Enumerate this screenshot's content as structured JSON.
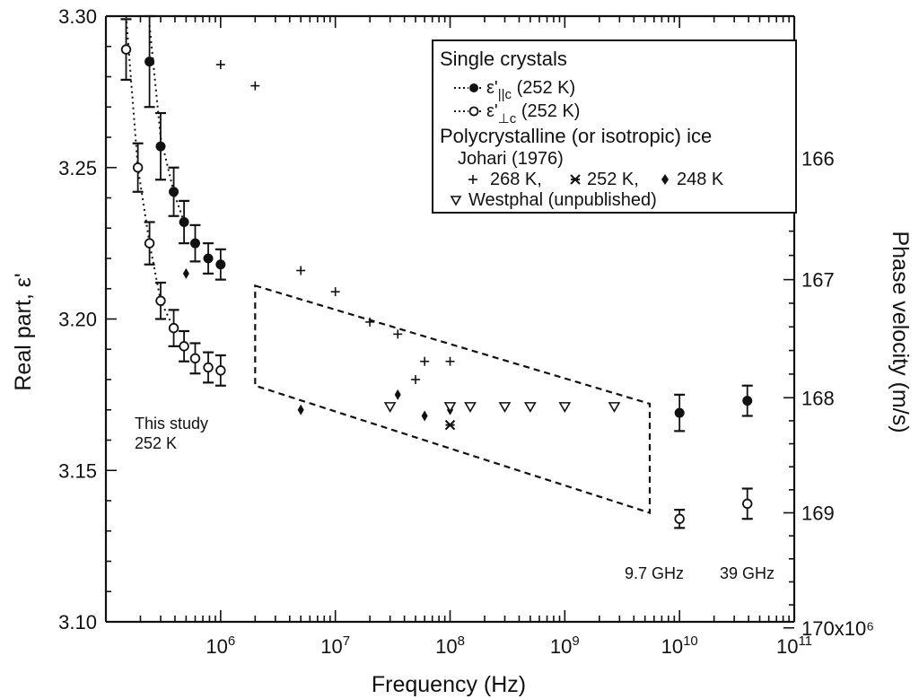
{
  "chart_data": {
    "type": "scatter",
    "xlabel": "Frequency (Hz)",
    "ylabel": "Real part, ε'",
    "y2label": "Phase velocity (m/s)",
    "xscale": "log",
    "xlim": [
      100000,
      100000000000
    ],
    "ylim": [
      3.1,
      3.3
    ],
    "x_ticks": [
      {
        "value": 1000000,
        "base": "10",
        "exp": "6"
      },
      {
        "value": 10000000,
        "base": "10",
        "exp": "7"
      },
      {
        "value": 100000000,
        "base": "10",
        "exp": "8"
      },
      {
        "value": 1000000000,
        "base": "10",
        "exp": "9"
      },
      {
        "value": 10000000000,
        "base": "10",
        "exp": "10"
      },
      {
        "value": 100000000000,
        "base": "10",
        "exp": "11"
      }
    ],
    "y_ticks": [
      {
        "value": 3.1,
        "label": "3.10"
      },
      {
        "value": 3.15,
        "label": "3.15"
      },
      {
        "value": 3.2,
        "label": "3.20"
      },
      {
        "value": 3.25,
        "label": "3.25"
      },
      {
        "value": 3.3,
        "label": "3.30"
      }
    ],
    "y2_ticks": [
      {
        "value": 3.253,
        "label": "166"
      },
      {
        "value": 3.213,
        "label": "167"
      },
      {
        "value": 3.174,
        "label": "168"
      },
      {
        "value": 3.136,
        "label": "169"
      },
      {
        "value": 3.098,
        "label": "170x10⁶"
      }
    ],
    "series": [
      {
        "name": "ε'||c (252 K)",
        "marker": "filled-circle",
        "points": [
          [
            240000,
            3.285,
            0.015
          ],
          [
            300000,
            3.257,
            0.011
          ],
          [
            390000,
            3.242,
            0.008
          ],
          [
            480000,
            3.232,
            0.007
          ],
          [
            600000,
            3.225,
            0.006
          ],
          [
            780000,
            3.22,
            0.005
          ],
          [
            1000000,
            3.218,
            0.005
          ],
          [
            10000000000,
            3.169,
            0.006
          ],
          [
            39000000000,
            3.173,
            0.005
          ]
        ]
      },
      {
        "name": "ε'⊥c (252 K)",
        "marker": "open-circle",
        "points": [
          [
            150000,
            3.289,
            0.01
          ],
          [
            190000,
            3.25,
            0.008
          ],
          [
            240000,
            3.225,
            0.007
          ],
          [
            300000,
            3.206,
            0.006
          ],
          [
            390000,
            3.197,
            0.006
          ],
          [
            480000,
            3.191,
            0.005
          ],
          [
            600000,
            3.187,
            0.005
          ],
          [
            780000,
            3.184,
            0.005
          ],
          [
            1000000,
            3.183,
            0.005
          ],
          [
            10000000000,
            3.134,
            0.003
          ],
          [
            39000000000,
            3.139,
            0.005
          ]
        ]
      },
      {
        "name": "268 K",
        "marker": "plus",
        "points": [
          [
            1000000,
            3.284
          ],
          [
            2000000,
            3.277
          ],
          [
            5000000,
            3.216
          ],
          [
            10000000,
            3.209
          ],
          [
            20000000,
            3.199
          ],
          [
            35000000,
            3.195
          ],
          [
            50000000,
            3.18
          ],
          [
            60000000,
            3.186
          ],
          [
            100000000,
            3.186
          ]
        ]
      },
      {
        "name": "252 K",
        "marker": "asterisk",
        "points": [
          [
            100000000,
            3.165
          ]
        ]
      },
      {
        "name": "248 K",
        "marker": "diamond",
        "points": [
          [
            500000,
            3.215
          ],
          [
            5000000,
            3.17
          ],
          [
            35000000,
            3.175
          ],
          [
            60000000,
            3.168
          ],
          [
            100000000,
            3.17
          ]
        ]
      },
      {
        "name": "Westphal (unpublished)",
        "marker": "triangle-down",
        "points": [
          [
            30000000,
            3.171
          ],
          [
            100000000,
            3.171
          ],
          [
            150000000,
            3.171
          ],
          [
            300000000,
            3.171
          ],
          [
            500000000,
            3.171
          ],
          [
            1000000000,
            3.171
          ],
          [
            2700000000,
            3.171
          ]
        ]
      }
    ],
    "dotted_fits": [
      {
        "series": "ε'||c (252 K)",
        "points": [
          [
            240000,
            3.297
          ],
          [
            300000,
            3.26
          ],
          [
            390000,
            3.242
          ],
          [
            480000,
            3.232
          ]
        ]
      },
      {
        "series": "ε'⊥c (252 K)",
        "points": [
          [
            150000,
            3.3
          ],
          [
            190000,
            3.25
          ],
          [
            240000,
            3.225
          ],
          [
            300000,
            3.206
          ],
          [
            390000,
            3.197
          ]
        ]
      }
    ],
    "dashed_region": [
      [
        2000000,
        3.211
      ],
      [
        5500000000,
        3.172
      ],
      [
        5500000000,
        3.136
      ],
      [
        2000000,
        3.178
      ]
    ],
    "legend": {
      "position": "top-right",
      "heading1": "Single crystals",
      "entry1_prefix": "ε'",
      "entry1_sub": "||c",
      "entry1_suffix": " (252 K)",
      "entry2_prefix": "ε'",
      "entry2_sub": "⊥c",
      "entry2_suffix": " (252 K)",
      "heading2": "Polycrystalline (or isotropic) ice",
      "source": "Johari (1976)",
      "temp1": "268 K,",
      "temp2": "252 K,",
      "temp3": "248 K",
      "westphal": "Westphal (unpublished)"
    },
    "annotations": {
      "study_line1": "This study",
      "study_line2": "252 K",
      "freq1": "9.7 GHz",
      "freq2": "39 GHz"
    }
  }
}
